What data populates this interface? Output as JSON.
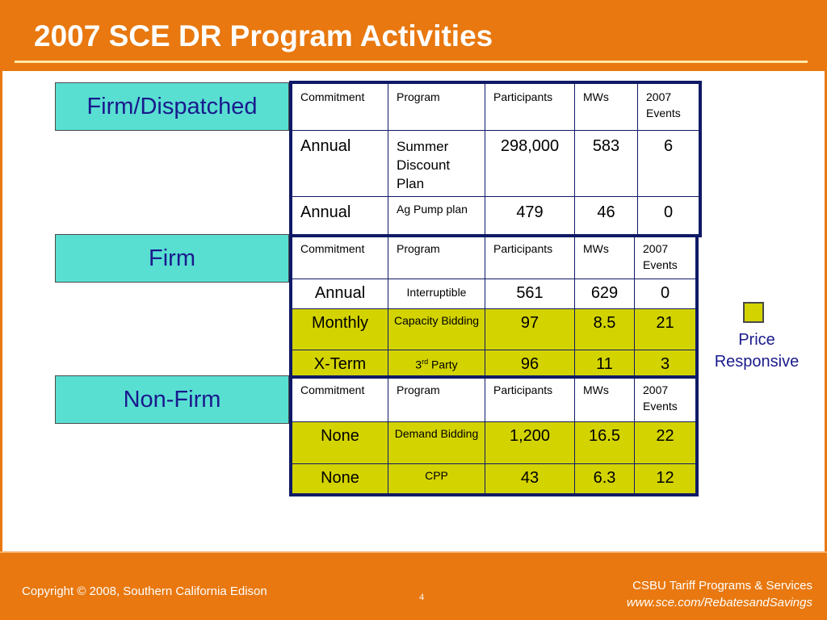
{
  "slide": {
    "title": "2007 SCE DR Program Activities",
    "colors": {
      "orange": "#e8780f",
      "teal": "#58dfd2",
      "yellow": "#d3d300",
      "navy": "#1a1a8c"
    }
  },
  "headers": [
    "Commitment",
    "Program",
    "Participants",
    "MWs",
    "2007 Events"
  ],
  "sections": [
    {
      "label": "Firm/Dispatched",
      "rows": [
        {
          "commitment": "Annual",
          "program": "Summer Discount Plan",
          "participants": "298,000",
          "mws": "583",
          "events": "6"
        },
        {
          "commitment": "Annual",
          "program": "Ag Pump plan",
          "participants": "479",
          "mws": "46",
          "events": "0"
        }
      ]
    },
    {
      "label": "Firm",
      "rows": [
        {
          "commitment": "Annual",
          "program": "Interruptible",
          "participants": "561",
          "mws": "629",
          "events": "0"
        },
        {
          "commitment": "Monthly",
          "program": "Capacity Bidding",
          "participants": "97",
          "mws": "8.5",
          "events": "21"
        },
        {
          "commitment": "X-Term",
          "program_main": "3",
          "program_sup": "rd",
          "program_rest": " Party",
          "participants": "96",
          "mws": "11",
          "events": "3"
        }
      ]
    },
    {
      "label": "Non-Firm",
      "rows": [
        {
          "commitment": "None",
          "program": "Demand Bidding",
          "participants": "1,200",
          "mws": "16.5",
          "events": "22"
        },
        {
          "commitment": "None",
          "program": "CPP",
          "participants": "43",
          "mws": "6.3",
          "events": "12"
        }
      ]
    }
  ],
  "legend": {
    "label": "Price Responsive"
  },
  "footer": {
    "copyright": "Copyright © 2008, Southern California Edison",
    "page": "4",
    "org": "CSBU Tariff Programs & Services",
    "url": "www.sce.com/RebatesandSavings"
  }
}
